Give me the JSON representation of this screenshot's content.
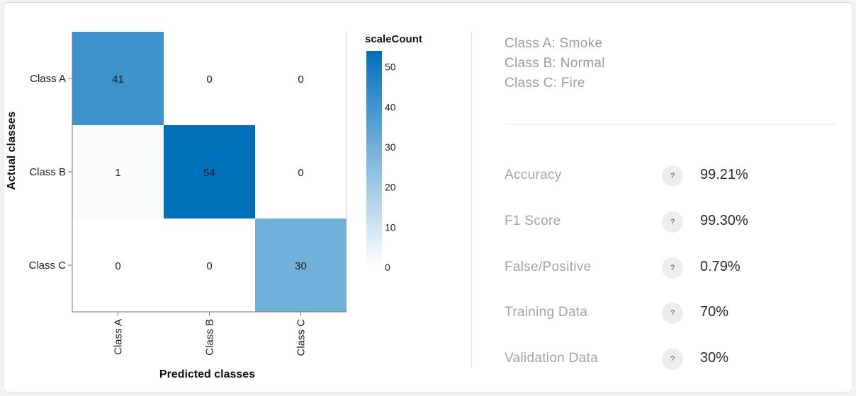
{
  "chart_data": {
    "type": "heatmap",
    "title": "",
    "xlabel": "Predicted classes",
    "ylabel": "Actual classes",
    "x_categories": [
      "Class A",
      "Class B",
      "Class C"
    ],
    "y_categories": [
      "Class A",
      "Class B",
      "Class C"
    ],
    "values": [
      [
        41,
        0,
        0
      ],
      [
        1,
        54,
        0
      ],
      [
        0,
        0,
        30
      ]
    ],
    "colorbar": {
      "title": "scaleCount",
      "min": 0,
      "max": 54,
      "ticks": [
        0,
        10,
        20,
        30,
        40,
        50
      ],
      "color_low": "#ffffff",
      "color_high": "#0070bb"
    }
  },
  "class_legend": [
    "Class A: Smoke",
    "Class B: Normal",
    "Class C: Fire"
  ],
  "metrics": [
    {
      "label": "Accuracy",
      "help": "?",
      "value": "99.21%"
    },
    {
      "label": "F1 Score",
      "help": "?",
      "value": "99.30%"
    },
    {
      "label": "False/Positive",
      "help": "?",
      "value": "0.79%"
    },
    {
      "label": "Training Data",
      "help": "?",
      "value": "70%"
    },
    {
      "label": "Validation Data",
      "help": "?",
      "value": "30%"
    }
  ]
}
